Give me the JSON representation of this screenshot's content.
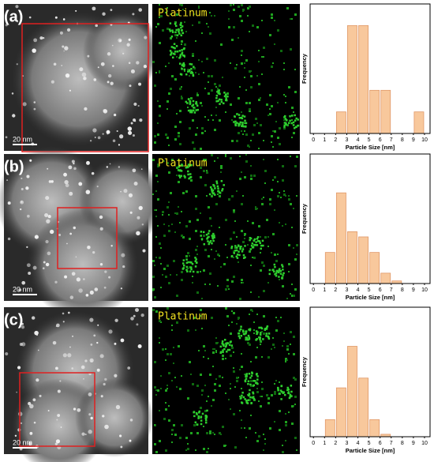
{
  "panels": [
    {
      "label": "(a)",
      "element": "Platinum",
      "scale_bar": "20 nm"
    },
    {
      "label": "(b)",
      "element": "Platinum",
      "scale_bar": "20 nm"
    },
    {
      "label": "(c)",
      "element": "Platinum",
      "scale_bar": "20 nm"
    }
  ],
  "chart_data": [
    {
      "type": "histogram",
      "x_label": "Particle Size [nm]",
      "y_label": "Frequency",
      "bins": [
        2,
        3,
        4,
        5,
        6,
        7,
        8,
        9,
        10
      ],
      "values": [
        1,
        5,
        5,
        2,
        2,
        0,
        0,
        1
      ],
      "color": "#f8c89c",
      "edge_color": "#e09868",
      "xlim": [
        -0.3,
        10.5
      ],
      "xticks": [
        0,
        1,
        2,
        3,
        4,
        5,
        6,
        7,
        8,
        9,
        10
      ],
      "ylim": [
        0,
        6
      ]
    },
    {
      "type": "histogram",
      "x_label": "Particle Size [nm]",
      "y_label": "Frequency",
      "bins": [
        1,
        2,
        3,
        4,
        5,
        6,
        7,
        8
      ],
      "values": [
        12,
        35,
        20,
        18,
        12,
        4,
        1
      ],
      "color": "#f8c89c",
      "edge_color": "#e09868",
      "xlim": [
        -0.3,
        10.5
      ],
      "xticks": [
        0,
        1,
        2,
        3,
        4,
        5,
        6,
        7,
        8,
        9,
        10
      ],
      "ylim": [
        0,
        50
      ]
    },
    {
      "type": "histogram",
      "x_label": "Particle Size [nm]",
      "y_label": "Frequency",
      "bins": [
        1,
        2,
        3,
        4,
        5,
        6,
        7
      ],
      "values": [
        7,
        20,
        37,
        24,
        7,
        1
      ],
      "color": "#f8c89c",
      "edge_color": "#e09868",
      "xlim": [
        -0.3,
        10.5
      ],
      "xticks": [
        0,
        1,
        2,
        3,
        4,
        5,
        6,
        7,
        8,
        9,
        10
      ],
      "ylim": [
        0,
        53
      ]
    }
  ]
}
